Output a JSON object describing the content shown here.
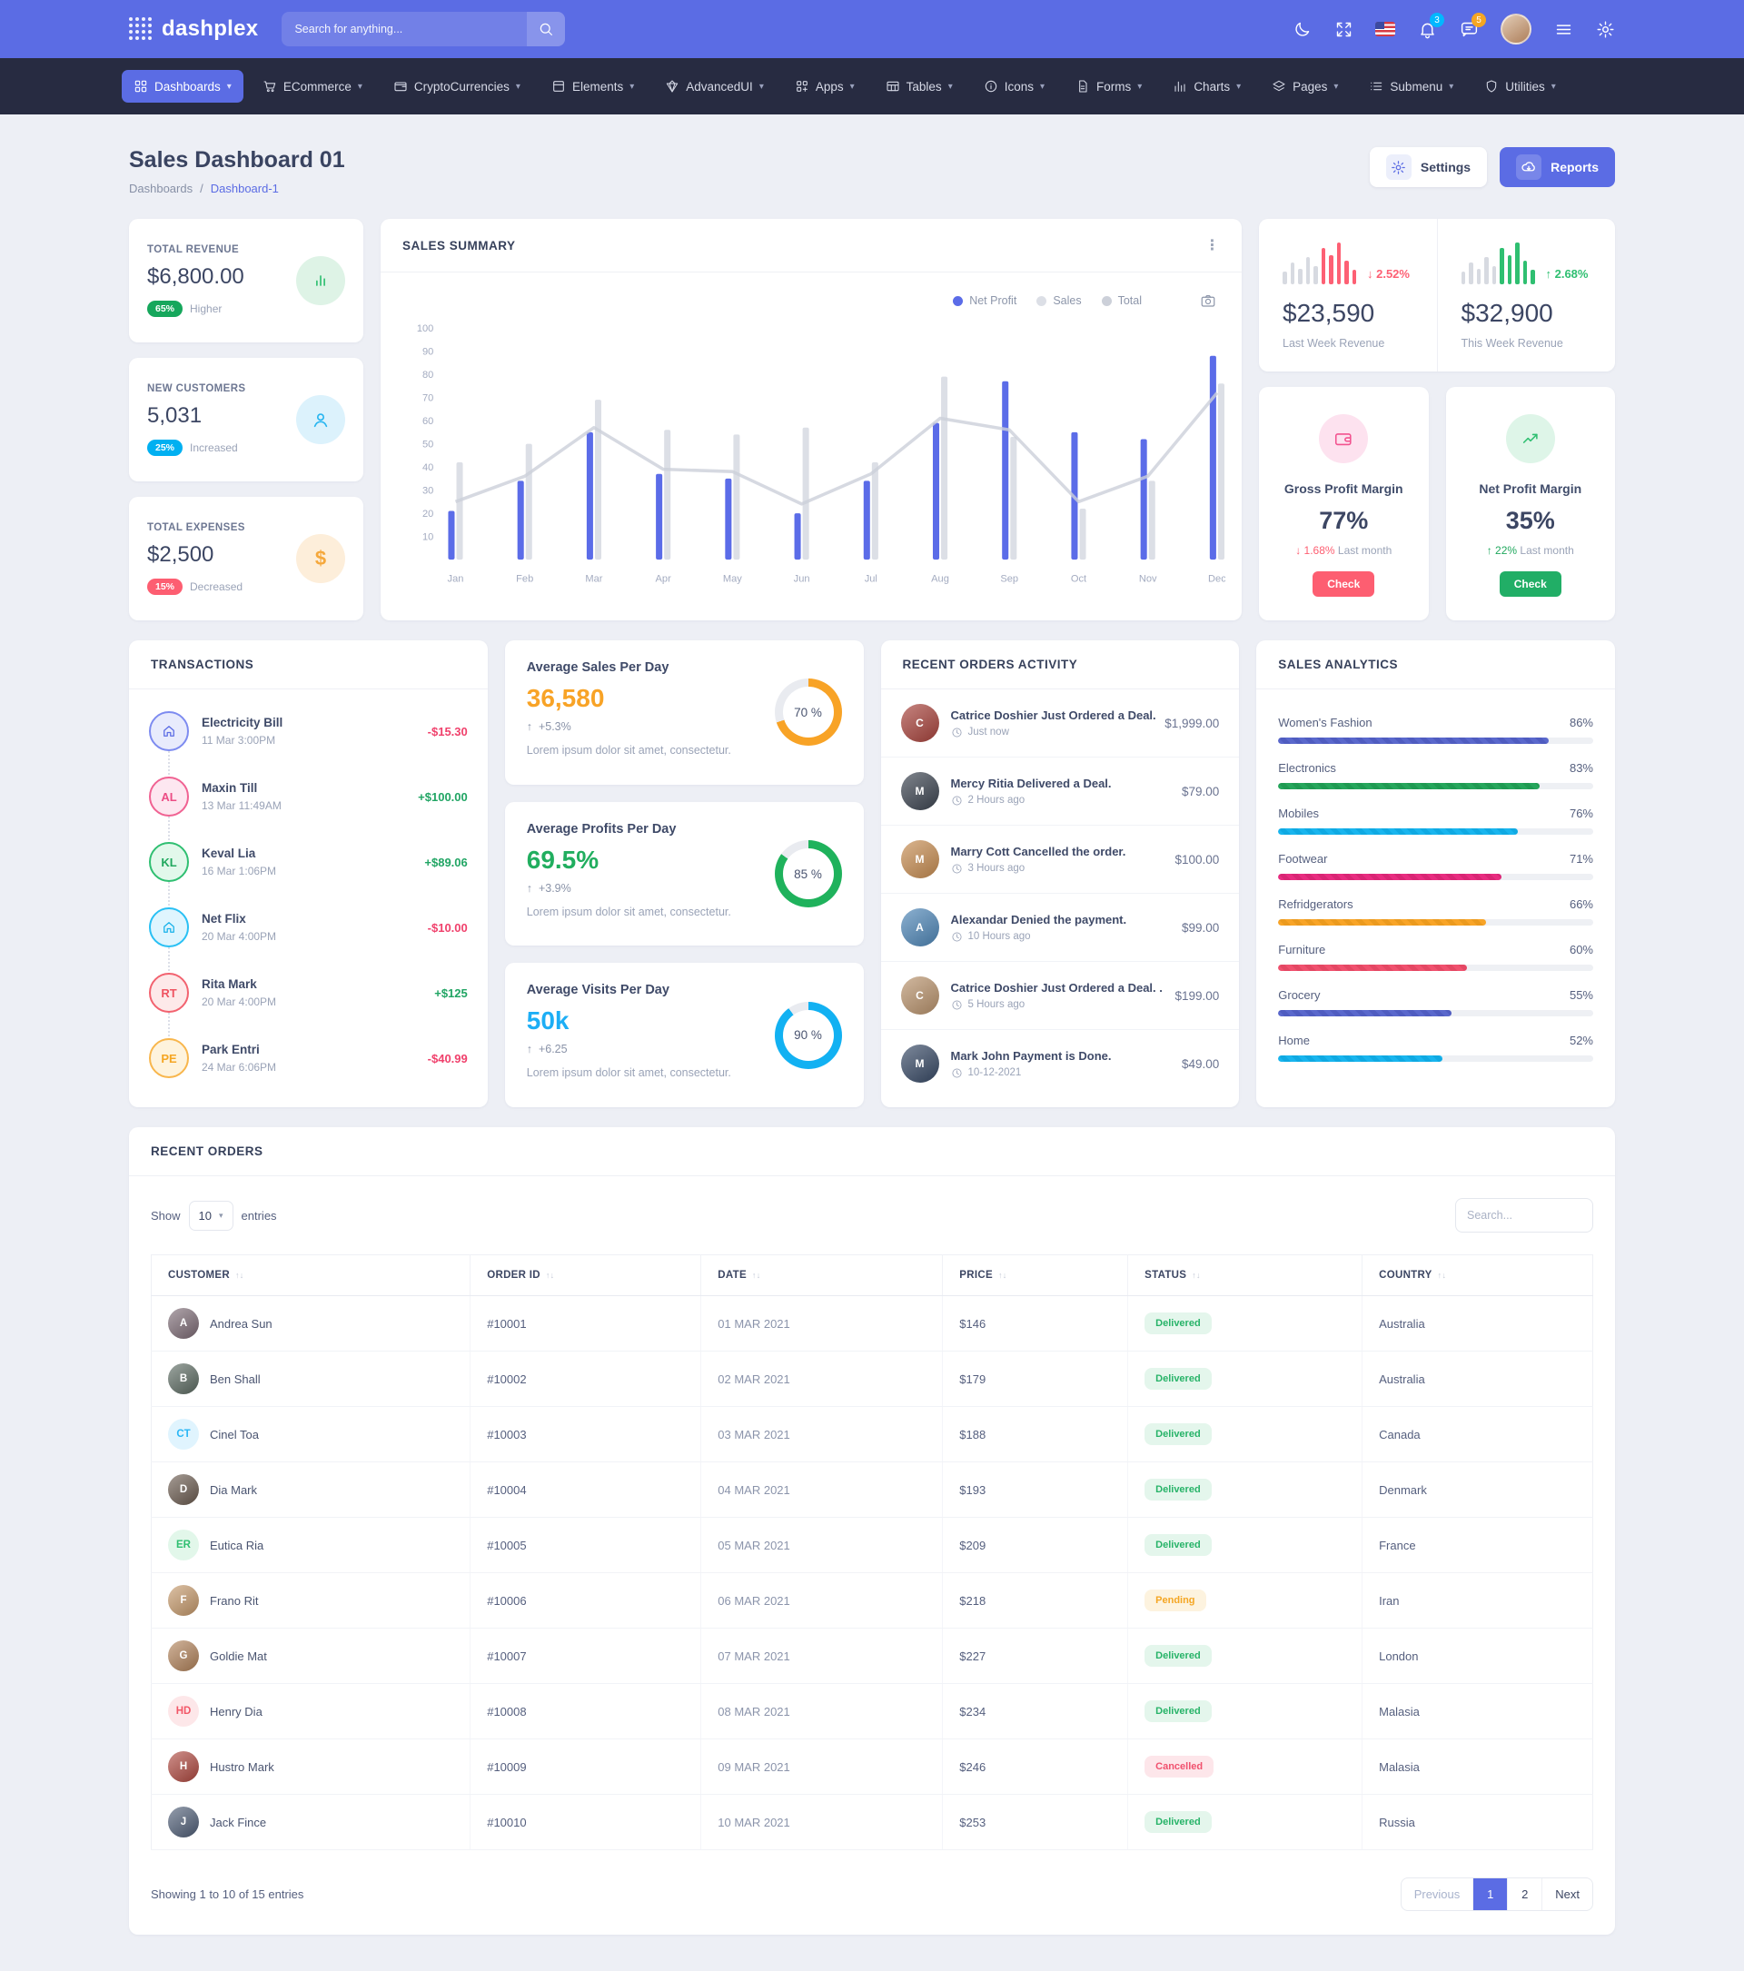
{
  "header": {
    "brand": "dashplex",
    "search_placeholder": "Search for anything...",
    "bell_badge": "3",
    "bell_badge_color": "#01b8ff",
    "chat_badge": "5",
    "chat_badge_color": "#f5a623"
  },
  "nav": {
    "items": [
      {
        "label": "Dashboards",
        "icon": "grid",
        "active": true
      },
      {
        "label": "ECommerce",
        "icon": "cart"
      },
      {
        "label": "CryptoCurrencies",
        "icon": "wallet"
      },
      {
        "label": "Elements",
        "icon": "box"
      },
      {
        "label": "AdvancedUI",
        "icon": "diamond"
      },
      {
        "label": "Apps",
        "icon": "apps"
      },
      {
        "label": "Tables",
        "icon": "table"
      },
      {
        "label": "Icons",
        "icon": "info"
      },
      {
        "label": "Forms",
        "icon": "file"
      },
      {
        "label": "Charts",
        "icon": "chart"
      },
      {
        "label": "Pages",
        "icon": "layers"
      },
      {
        "label": "Submenu",
        "icon": "list"
      },
      {
        "label": "Utilities",
        "icon": "shield"
      }
    ]
  },
  "page": {
    "title": "Sales Dashboard 01",
    "breadcrumb_parent": "Dashboards",
    "breadcrumb_current": "Dashboard-1",
    "settings_label": "Settings",
    "reports_label": "Reports"
  },
  "stats": [
    {
      "label": "TOTAL REVENUE",
      "value": "$6,800.00",
      "badge": "65%",
      "badge_bg": "#16a75c",
      "note": "Higher",
      "icon": "bars",
      "icon_fg": "#2fbf71",
      "icon_bg": "#def3e6"
    },
    {
      "label": "NEW CUSTOMERS",
      "value": "5,031",
      "badge": "25%",
      "badge_bg": "#01b0f1",
      "note": "Increased",
      "icon": "user",
      "icon_fg": "#29b6f0",
      "icon_bg": "#dcf2fc"
    },
    {
      "label": "TOTAL EXPENSES",
      "value": "$2,500",
      "badge": "15%",
      "badge_bg": "#fd5e71",
      "note": "Decreased",
      "icon": "dollar",
      "icon_fg": "#f5a83c",
      "icon_bg": "#fdeeda"
    }
  ],
  "sales_summary": {
    "title": "SALES SUMMARY",
    "chart_data": {
      "type": "bar",
      "categories": [
        "Jan",
        "Feb",
        "Mar",
        "Apr",
        "May",
        "Jun",
        "Jul",
        "Aug",
        "Sep",
        "Oct",
        "Nov",
        "Dec"
      ],
      "series": [
        {
          "name": "Net Profit",
          "type": "bar",
          "color": "#5b6ce8",
          "values": [
            21,
            34,
            55,
            37,
            35,
            20,
            34,
            59,
            77,
            55,
            52,
            88
          ]
        },
        {
          "name": "Sales",
          "type": "bar",
          "color": "#dcdfe6",
          "values": [
            42,
            50,
            69,
            56,
            54,
            57,
            42,
            79,
            53,
            22,
            34,
            76
          ]
        },
        {
          "name": "Total",
          "type": "line",
          "color": "#ccd0d9",
          "values": [
            25,
            36,
            57,
            39,
            38,
            24,
            37,
            61,
            56,
            25,
            36,
            72
          ]
        }
      ],
      "ylim": [
        0,
        100
      ],
      "yticks": [
        10,
        20,
        30,
        40,
        50,
        60,
        70,
        80,
        90,
        100
      ],
      "legend_position": "top-right",
      "grid": false
    }
  },
  "week_revenue": [
    {
      "delta": "2.52%",
      "dir": "down",
      "accent": "#fd6074",
      "value": "$23,590",
      "label": "Last Week Revenue",
      "mini_heights": [
        14,
        24,
        17,
        30,
        20,
        40,
        32,
        46,
        26,
        16
      ],
      "accent_from": 5
    },
    {
      "delta": "2.68%",
      "dir": "up",
      "accent": "#2fbf71",
      "value": "$32,900",
      "label": "This Week Revenue",
      "mini_heights": [
        14,
        24,
        17,
        30,
        20,
        40,
        32,
        46,
        26,
        16
      ],
      "accent_from": 5
    }
  ],
  "margins": [
    {
      "icon": "walletp",
      "icon_fg": "#f2528f",
      "icon_bg": "#fde2ef",
      "title": "Gross Profit Margin",
      "value": "77%",
      "dir": "down",
      "delta": "1.68%",
      "delta_color": "#fd5e71",
      "note": "Last month",
      "button": "Check",
      "button_bg": "#fd5e71"
    },
    {
      "icon": "trend",
      "icon_fg": "#2fbf71",
      "icon_bg": "#def5e8",
      "title": "Net Profit Margin",
      "value": "35%",
      "dir": "up",
      "delta": "22%",
      "delta_color": "#21a85e",
      "note": "Last month",
      "button": "Check",
      "button_bg": "#21ae66"
    }
  ],
  "transactions": {
    "title": "TRANSACTIONS",
    "items": [
      {
        "name": "Electricity Bill",
        "date": "11 Mar 3:00PM",
        "amount": "-$15.30",
        "amount_color": "#f0416c",
        "avatar": {
          "kind": "icon",
          "icon": "home",
          "border": "#7d8bf0",
          "bg": "#e8ebfc",
          "fg": "#5b6ce4"
        }
      },
      {
        "name": "Maxin Till",
        "date": "13 Mar 11:49AM",
        "amount": "+$100.00",
        "amount_color": "#21a564",
        "avatar": {
          "kind": "initials",
          "text": "AL",
          "border": "#f06292",
          "bg": "#fde7f0",
          "fg": "#ec4d85"
        }
      },
      {
        "name": "Keval Lia",
        "date": "16 Mar 1:06PM",
        "amount": "+$89.06",
        "amount_color": "#21a564",
        "avatar": {
          "kind": "initials",
          "text": "KL",
          "border": "#2fbf71",
          "bg": "#e2f8eb",
          "fg": "#21a85e"
        }
      },
      {
        "name": "Net Flix",
        "date": "20 Mar 4:00PM",
        "amount": "-$10.00",
        "amount_color": "#f0416c",
        "avatar": {
          "kind": "icon",
          "icon": "home",
          "border": "#29c0f4",
          "bg": "#dff5fe",
          "fg": "#19b2ea"
        }
      },
      {
        "name": "Rita Mark",
        "date": "20 Mar 4:00PM",
        "amount": "+$125",
        "amount_color": "#21a564",
        "avatar": {
          "kind": "initials",
          "text": "RT",
          "border": "#f2626f",
          "bg": "#fde9e9",
          "fg": "#ef5361"
        }
      },
      {
        "name": "Park Entri",
        "date": "24 Mar 6:06PM",
        "amount": "-$40.99",
        "amount_color": "#f0416c",
        "avatar": {
          "kind": "initials",
          "text": "PE",
          "border": "#f8b64c",
          "bg": "#fef3dd",
          "fg": "#f5a623"
        }
      }
    ]
  },
  "averages": [
    {
      "title": "Average Sales Per Day",
      "value": "36,580",
      "value_color": "#f8a326",
      "delta": "+5.3%",
      "desc": "Lorem ipsum dolor sit amet, consectetur.",
      "ring_pct": 70,
      "ring_label": "70 %",
      "ring_color": "#f8a326"
    },
    {
      "title": "Average Profits Per Day",
      "value": "69.5%",
      "value_color": "#21ae5f",
      "delta": "+3.9%",
      "desc": "Lorem ipsum dolor sit amet, consectetur.",
      "ring_pct": 85,
      "ring_label": "85 %",
      "ring_color": "#1fb25c"
    },
    {
      "title": "Average Visits Per Day",
      "value": "50k",
      "value_color": "#1daef5",
      "delta": "+6.25",
      "desc": "Lorem ipsum dolor sit amet, consectetur.",
      "ring_pct": 90,
      "ring_label": "90 %",
      "ring_color": "#12b1f2"
    }
  ],
  "activity": {
    "title": "RECENT ORDERS ACTIVITY",
    "items": [
      {
        "text": "Catrice Doshier Just Ordered a Deal.",
        "time": "Just now",
        "amount": "$1,999.00",
        "avatar_color": "#a8433c",
        "initial": "C"
      },
      {
        "text": "Mercy Ritia Delivered a Deal.",
        "time": "2 Hours ago",
        "amount": "$79.00",
        "avatar_color": "#3c4450",
        "initial": "M"
      },
      {
        "text": "Marry Cott Cancelled the order.",
        "time": "3 Hours ago",
        "amount": "$100.00",
        "avatar_color": "#c78d52",
        "initial": "M"
      },
      {
        "text": "Alexandar Denied the payment.",
        "time": "10 Hours ago",
        "amount": "$99.00",
        "avatar_color": "#4f87b8",
        "initial": "A"
      },
      {
        "text": "Catrice Doshier Just Ordered a Deal. .",
        "time": "5 Hours ago",
        "amount": "$199.00",
        "avatar_color": "#b9936d",
        "initial": "C"
      },
      {
        "text": "Mark John Payment is Done.",
        "time": "10-12-2021",
        "amount": "$49.00",
        "avatar_color": "#384a66",
        "initial": "M"
      }
    ]
  },
  "analytics": {
    "title": "SALES ANALYTICS",
    "items": [
      {
        "label": "Women's Fashion",
        "pct": 86,
        "pct_label": "86%",
        "color": "#5a68cc",
        "stripe": "#4f5cc0"
      },
      {
        "label": "Electronics",
        "pct": 83,
        "pct_label": "83%",
        "color": "#26a65c",
        "stripe": "#1f9a52"
      },
      {
        "label": "Mobiles",
        "pct": 76,
        "pct_label": "76%",
        "color": "#19b5ee",
        "stripe": "#0fa9e2"
      },
      {
        "label": "Footwear",
        "pct": 71,
        "pct_label": "71%",
        "color": "#e82c80",
        "stripe": "#d92574"
      },
      {
        "label": "Refridgerators",
        "pct": 66,
        "pct_label": "66%",
        "color": "#f8a427",
        "stripe": "#eb9a1e"
      },
      {
        "label": "Furniture",
        "pct": 60,
        "pct_label": "60%",
        "color": "#f0516e",
        "stripe": "#e44763"
      },
      {
        "label": "Grocery",
        "pct": 55,
        "pct_label": "55%",
        "color": "#5a68cc",
        "stripe": "#4f5cc0"
      },
      {
        "label": "Home",
        "pct": 52,
        "pct_label": "52%",
        "color": "#19b5ee",
        "stripe": "#0fa9e2"
      }
    ]
  },
  "orders": {
    "title": "RECENT ORDERS",
    "show_label": "Show",
    "page_size": "10",
    "entries_label": "entries",
    "search_placeholder": "Search...",
    "columns": [
      "CUSTOMER",
      "ORDER ID",
      "DATE",
      "PRICE",
      "STATUS",
      "COUNTRY"
    ],
    "rows": [
      {
        "customer": "Andrea Sun",
        "avatar": {
          "kind": "photo",
          "color": "#7d6b75",
          "text": "A"
        },
        "order_id": "#10001",
        "date": "01 MAR 2021",
        "price": "$146",
        "status": "Delivered",
        "country": "Australia"
      },
      {
        "customer": "Ben Shall",
        "avatar": {
          "kind": "photo",
          "color": "#5c6b62",
          "text": "B"
        },
        "order_id": "#10002",
        "date": "02 MAR 2021",
        "price": "$179",
        "status": "Delivered",
        "country": "Australia"
      },
      {
        "customer": "Cinel Toa",
        "avatar": {
          "kind": "initials",
          "bg": "#e0f4fe",
          "fg": "#29b6f6",
          "text": "CT"
        },
        "order_id": "#10003",
        "date": "03 MAR 2021",
        "price": "$188",
        "status": "Delivered",
        "country": "Canada"
      },
      {
        "customer": "Dia Mark",
        "avatar": {
          "kind": "photo",
          "color": "#6b5b4f",
          "text": "D"
        },
        "order_id": "#10004",
        "date": "04 MAR 2021",
        "price": "$193",
        "status": "Delivered",
        "country": "Denmark"
      },
      {
        "customer": "Eutica Ria",
        "avatar": {
          "kind": "initials",
          "bg": "#e2f7ea",
          "fg": "#2fbf71",
          "text": "ER"
        },
        "order_id": "#10005",
        "date": "05 MAR 2021",
        "price": "$209",
        "status": "Delivered",
        "country": "France"
      },
      {
        "customer": "Frano Rit",
        "avatar": {
          "kind": "photo",
          "color": "#c79a6b",
          "text": "F"
        },
        "order_id": "#10006",
        "date": "06 MAR 2021",
        "price": "$218",
        "status": "Pending",
        "country": "Iran"
      },
      {
        "customer": "Goldie Mat",
        "avatar": {
          "kind": "photo",
          "color": "#b3835a",
          "text": "G"
        },
        "order_id": "#10007",
        "date": "07 MAR 2021",
        "price": "$227",
        "status": "Delivered",
        "country": "London"
      },
      {
        "customer": "Henry Dia",
        "avatar": {
          "kind": "initials",
          "bg": "#fde7e9",
          "fg": "#f25767",
          "text": "HD"
        },
        "order_id": "#10008",
        "date": "08 MAR 2021",
        "price": "$234",
        "status": "Delivered",
        "country": "Malasia"
      },
      {
        "customer": "Hustro Mark",
        "avatar": {
          "kind": "photo",
          "color": "#b0483f",
          "text": "H"
        },
        "order_id": "#10009",
        "date": "09 MAR 2021",
        "price": "$246",
        "status": "Cancelled",
        "country": "Malasia"
      },
      {
        "customer": "Jack Fince",
        "avatar": {
          "kind": "photo",
          "color": "#4f5e77",
          "text": "J"
        },
        "order_id": "#10010",
        "date": "10 MAR 2021",
        "price": "$253",
        "status": "Delivered",
        "country": "Russia"
      }
    ],
    "footer": "Showing 1 to 10 of 15 entries",
    "pagination": [
      "Previous",
      "1",
      "2",
      "Next"
    ],
    "active_page": "1"
  }
}
